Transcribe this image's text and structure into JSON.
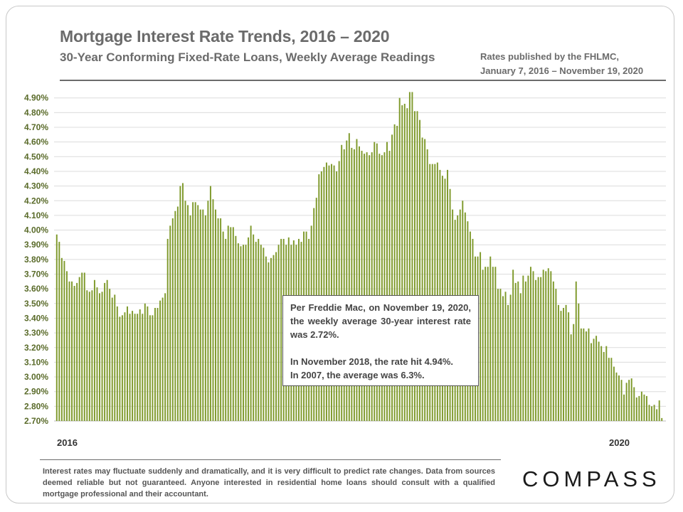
{
  "header": {
    "title": "Mortgage Interest Rate Trends, 2016 – 2020",
    "subtitle": "30-Year Conforming Fixed-Rate Loans, Weekly Average Readings",
    "source_line1": "Rates published by the FHLMC,",
    "source_line2": "January 7, 2016 – November 19, 2020"
  },
  "chart_data": {
    "type": "bar",
    "title": "",
    "xlabel": "",
    "ylabel": "",
    "ylim": [
      2.7,
      4.94
    ],
    "yticks": [
      "2.70%",
      "2.80%",
      "2.90%",
      "3.00%",
      "3.10%",
      "3.20%",
      "3.30%",
      "3.40%",
      "3.50%",
      "3.60%",
      "3.70%",
      "3.80%",
      "3.90%",
      "4.00%",
      "4.10%",
      "4.20%",
      "4.30%",
      "4.40%",
      "4.50%",
      "4.60%",
      "4.70%",
      "4.80%",
      "4.90%"
    ],
    "x_start_label": "2016",
    "x_end_label": "2020",
    "grid": true,
    "bar_color": "#7f9a2c",
    "series": [
      {
        "values": [
          3.97,
          3.92,
          3.81,
          3.79,
          3.72,
          3.65,
          3.65,
          3.62,
          3.64,
          3.68,
          3.71,
          3.71,
          3.59,
          3.58,
          3.59,
          3.66,
          3.61,
          3.57,
          3.58,
          3.64,
          3.66,
          3.6,
          3.54,
          3.56,
          3.48,
          3.41,
          3.42,
          3.44,
          3.48,
          3.43,
          3.45,
          3.43,
          3.43,
          3.46,
          3.43,
          3.5,
          3.48,
          3.42,
          3.42,
          3.47,
          3.47,
          3.52,
          3.54,
          3.57,
          3.94,
          4.03,
          4.08,
          4.13,
          4.16,
          4.3,
          4.32,
          4.2,
          4.17,
          4.1,
          4.19,
          4.19,
          4.17,
          4.14,
          4.14,
          4.1,
          4.2,
          4.3,
          4.21,
          4.14,
          4.08,
          4.08,
          3.99,
          3.94,
          4.03,
          4.02,
          4.02,
          3.96,
          3.91,
          3.89,
          3.9,
          3.9,
          3.95,
          4.03,
          3.97,
          3.92,
          3.94,
          3.9,
          3.88,
          3.82,
          3.78,
          3.81,
          3.83,
          3.85,
          3.9,
          3.94,
          3.94,
          3.9,
          3.95,
          3.9,
          3.93,
          3.9,
          3.94,
          3.92,
          3.99,
          3.99,
          3.94,
          4.03,
          4.15,
          4.22,
          4.38,
          4.4,
          4.43,
          4.46,
          4.44,
          4.45,
          4.44,
          4.4,
          4.47,
          4.58,
          4.55,
          4.61,
          4.66,
          4.56,
          4.55,
          4.62,
          4.57,
          4.54,
          4.52,
          4.53,
          4.51,
          4.53,
          4.6,
          4.59,
          4.52,
          4.51,
          4.53,
          4.6,
          4.54,
          4.65,
          4.72,
          4.71,
          4.9,
          4.85,
          4.86,
          4.83,
          4.94,
          4.94,
          4.81,
          4.81,
          4.75,
          4.63,
          4.62,
          4.55,
          4.45,
          4.45,
          4.45,
          4.46,
          4.41,
          4.37,
          4.35,
          4.41,
          4.28,
          4.14,
          4.07,
          4.1,
          4.14,
          4.2,
          4.12,
          4.06,
          3.99,
          3.94,
          3.82,
          3.82,
          3.85,
          3.73,
          3.75,
          3.75,
          3.82,
          3.75,
          3.75,
          3.6,
          3.6,
          3.55,
          3.58,
          3.49,
          3.56,
          3.73,
          3.64,
          3.65,
          3.57,
          3.69,
          3.65,
          3.69,
          3.75,
          3.72,
          3.66,
          3.68,
          3.68,
          3.73,
          3.72,
          3.74,
          3.72,
          3.65,
          3.6,
          3.49,
          3.45,
          3.47,
          3.49,
          3.44,
          3.29,
          3.36,
          3.65,
          3.5,
          3.33,
          3.33,
          3.31,
          3.33,
          3.23,
          3.26,
          3.28,
          3.24,
          3.21,
          3.17,
          3.21,
          3.13,
          3.13,
          3.07,
          3.03,
          3.01,
          2.98,
          2.88,
          2.96,
          2.98,
          2.99,
          2.93,
          2.86,
          2.87,
          2.9,
          2.88,
          2.87,
          2.81,
          2.8,
          2.81,
          2.78,
          2.84,
          2.72
        ]
      }
    ]
  },
  "callout": {
    "para1": "Per Freddie Mac, on November 19, 2020, the weekly average 30-year interest rate was 2.72%.",
    "para2_line1": "In November 2018, the rate hit 4.94%.",
    "para2_line2": "In 2007, the average was 6.3%."
  },
  "footnote": "Interest rates may fluctuate suddenly and dramatically, and it is very difficult to predict rate changes. Data from sources deemed reliable but not guaranteed. Anyone interested in residential home loans should consult with a qualified mortgage professional and their accountant.",
  "logo": "COMPASS"
}
